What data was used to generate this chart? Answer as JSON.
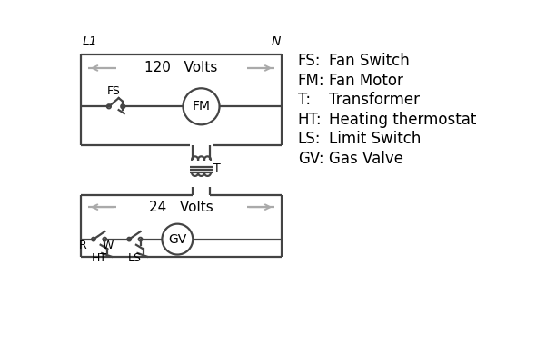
{
  "legend": {
    "FS": "Fan Switch",
    "FM": "Fan Motor",
    "T": "Transformer",
    "HT": "Heating thermostat",
    "LS": "Limit Switch",
    "GV": "Gas Valve"
  },
  "line_color": "#444444",
  "arrow_color": "#aaaaaa",
  "text_color": "#000000",
  "bg_color": "#ffffff",
  "legend_font_size": 12
}
